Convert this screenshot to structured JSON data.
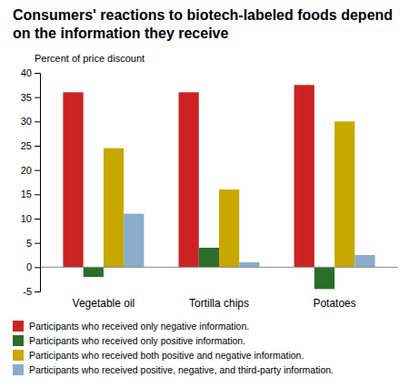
{
  "chart_data": {
    "type": "bar",
    "title": "Consumers' reactions to biotech-labeled foods depend on the information they receive",
    "y_label": "Percent of price discount",
    "categories": [
      "Vegetable oil",
      "Tortilla chips",
      "Potatoes"
    ],
    "series": [
      {
        "name": "Participants who received only negative information.",
        "color": "#CC2222",
        "values": [
          36,
          36,
          37.5
        ]
      },
      {
        "name": "Participants who received only positive information.",
        "color": "#2A6E2A",
        "values": [
          -2,
          4,
          -4.5
        ]
      },
      {
        "name": "Participants who received both positive and negative information.",
        "color": "#C8A800",
        "values": [
          24.5,
          16,
          30
        ]
      },
      {
        "name": "Participants who received positive, negative, and third-party information.",
        "color": "#8AACCC",
        "values": [
          11,
          1,
          2.5
        ]
      }
    ],
    "ylim": [
      -5,
      40
    ],
    "yticks": [
      -5,
      0,
      5,
      10,
      15,
      20,
      25,
      30,
      35,
      40
    ],
    "grid": false,
    "legend": "bottom"
  }
}
